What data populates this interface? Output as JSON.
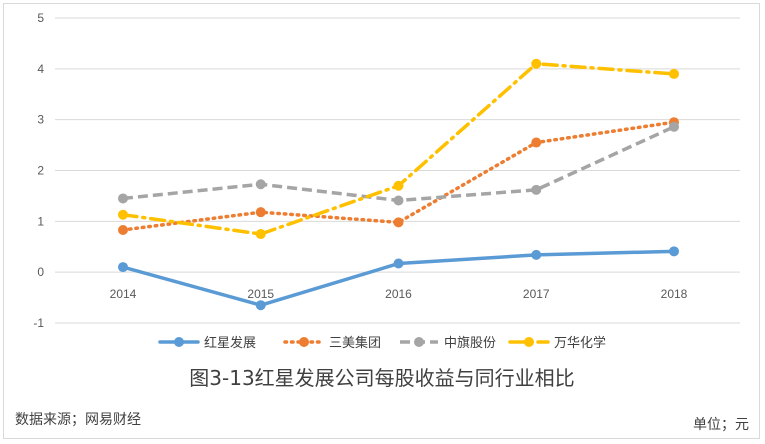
{
  "chart_data": {
    "type": "line",
    "title": "图3-13红星发展公司每股收益与同行业相比",
    "categories": [
      "2014",
      "2015",
      "2016",
      "2017",
      "2018"
    ],
    "ylim": [
      -1,
      5
    ],
    "yticks": [
      -1,
      0,
      1,
      2,
      3,
      4,
      5
    ],
    "grid": true,
    "legend_position": "bottom",
    "series": [
      {
        "name": "红星发展",
        "values": [
          0.1,
          -0.65,
          0.17,
          0.34,
          0.41
        ],
        "color": "#5b9bd5",
        "style": "solid"
      },
      {
        "name": "三美集团",
        "values": [
          0.83,
          1.18,
          0.98,
          2.55,
          2.95
        ],
        "color": "#ed7d31",
        "style": "dotted"
      },
      {
        "name": "中旗股份",
        "values": [
          1.45,
          1.73,
          1.41,
          1.62,
          2.86
        ],
        "color": "#a5a5a5",
        "style": "dashed"
      },
      {
        "name": "万华化学",
        "values": [
          1.13,
          0.75,
          1.7,
          4.1,
          3.9
        ],
        "color": "#ffc000",
        "style": "dashdot"
      }
    ]
  },
  "footer": {
    "source": "数据来源；网易财经",
    "unit": "单位；元"
  }
}
